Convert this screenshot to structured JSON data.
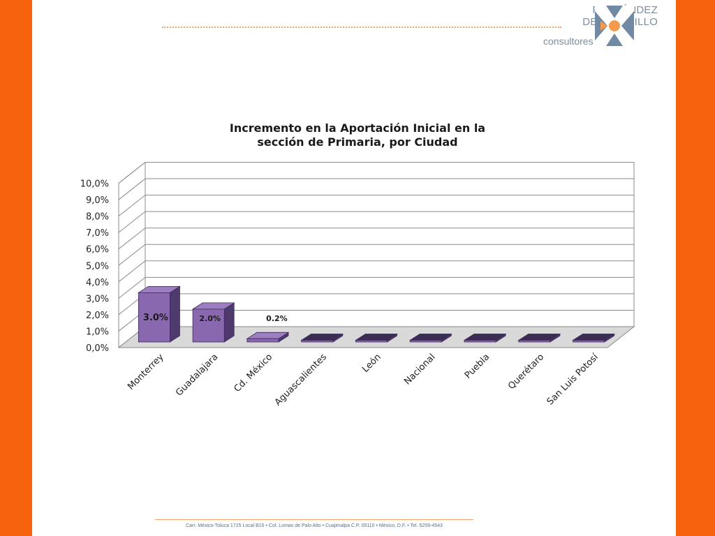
{
  "brand": {
    "line1": "FERNÁNDEZ",
    "line2": "DEL CASTILLO",
    "line3": "consultores",
    "colors": {
      "primary": "#7a8ea0",
      "accent": "#f39a4e",
      "frame": "#f7620d"
    }
  },
  "chart_data": {
    "type": "bar",
    "title_line1": "Incremento en la Aportación Inicial en la",
    "title_line2": "sección de Primaria, por Ciudad",
    "categories": [
      "Monterrey",
      "Guadalajara",
      "Cd. México",
      "Aguascalientes",
      "León",
      "Nacional",
      "Puebla",
      "Querétaro",
      "San Luis Potosí"
    ],
    "values": [
      3.0,
      2.0,
      0.2,
      0.0,
      0.0,
      0.0,
      0.0,
      0.0,
      0.0
    ],
    "data_labels": [
      "3.0%",
      "2.0%",
      "0.2%",
      "",
      "",
      "",
      "",
      "",
      ""
    ],
    "yticks": [
      "0,0%",
      "1,0%",
      "2,0%",
      "3,0%",
      "4,0%",
      "5,0%",
      "6,0%",
      "7,0%",
      "8,0%",
      "9,0%",
      "10,0%"
    ],
    "ylim": [
      0,
      10
    ],
    "grid": true,
    "style": "3d-column",
    "bar_color": "#8a68b0"
  },
  "footer": {
    "address": "Carr. México-Toluca 1725 Local B15 • Col. Lomas de Palo Alto • Cuajimalpa C.P. 05110 • México, D.F. • Tel. 5259-4543"
  }
}
